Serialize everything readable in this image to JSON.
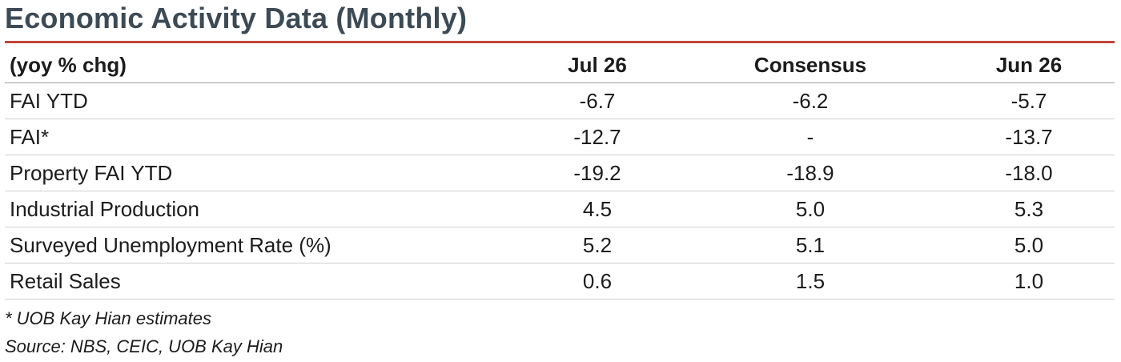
{
  "title": "Economic Activity Data (Monthly)",
  "table": {
    "headers": [
      "(yoy % chg)",
      "Jul 26",
      "Consensus",
      "Jun 26"
    ],
    "rows": [
      {
        "label": "FAI YTD",
        "jul": "-6.7",
        "consensus": "-6.2",
        "jun": "-5.7"
      },
      {
        "label": "FAI*",
        "jul": "-12.7",
        "consensus": "-",
        "jun": "-13.7"
      },
      {
        "label": "Property FAI YTD",
        "jul": "-19.2",
        "consensus": "-18.9",
        "jun": "-18.0"
      },
      {
        "label": "Industrial Production",
        "jul": "4.5",
        "consensus": "5.0",
        "jun": "5.3"
      },
      {
        "label": "Surveyed Unemployment Rate (%)",
        "jul": "5.2",
        "consensus": "5.1",
        "jun": "5.0"
      },
      {
        "label": "Retail Sales",
        "jul": "0.6",
        "consensus": "1.5",
        "jun": "1.0"
      }
    ]
  },
  "notes": {
    "footnote": "* UOB Kay Hian estimates",
    "source": "Source: NBS, CEIC, UOB Kay Hian"
  },
  "colors": {
    "title": "#3c4a55",
    "accent_rule": "#c0433a"
  }
}
